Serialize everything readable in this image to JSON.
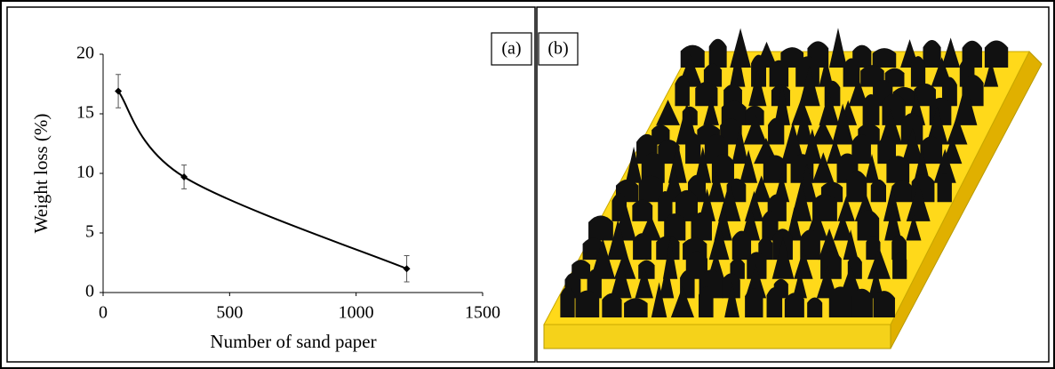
{
  "chart_data": {
    "type": "line",
    "xlabel": "Number of sand paper",
    "ylabel": "Weight loss (%)",
    "x": [
      60,
      320,
      1200
    ],
    "values": [
      16.9,
      9.7,
      2.0
    ],
    "errors": [
      1.4,
      1.0,
      1.1
    ],
    "color": "#000000",
    "xlim": [
      0,
      1500
    ],
    "xticks": [
      0,
      500,
      1000,
      1500
    ],
    "ylim": [
      0,
      20
    ],
    "yticks": [
      0,
      5,
      10,
      15,
      20
    ]
  },
  "panels": {
    "a_label": "(a)",
    "b_label": "(b)"
  }
}
